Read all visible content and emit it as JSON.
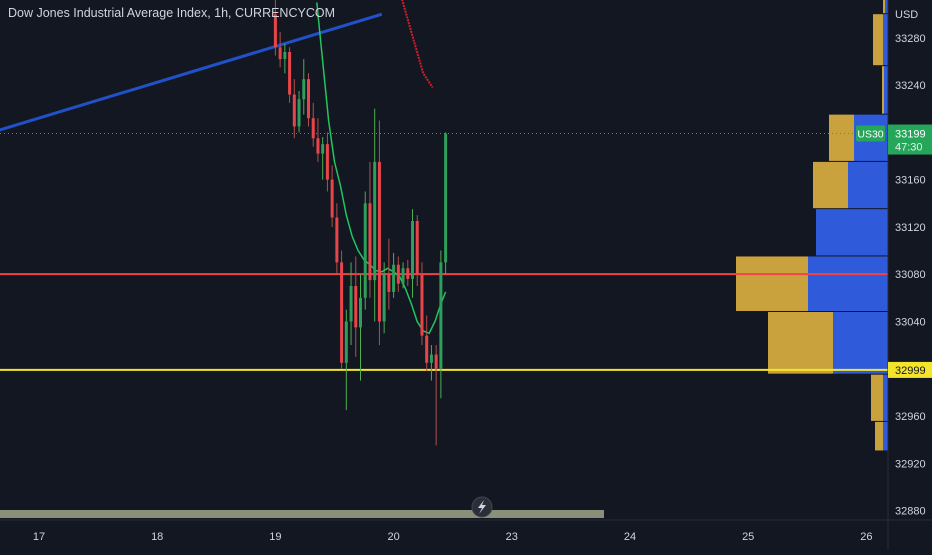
{
  "header": {
    "title": "Dow Jones Industrial Average Index, 1h, CURRENCYCOM"
  },
  "colors": {
    "background": "#131722",
    "axis_text": "#d1d4dc",
    "bull": "#2e9e5b",
    "bear": "#e8454a",
    "wick_bull": "#4caf50",
    "wick_bear": "#b0504f",
    "sma_line": "#22c55e",
    "trend_line": "#2151c8",
    "red_level": "#ef4444",
    "yellow_level": "#f5e52a",
    "vp_up": "#c9a23e",
    "vp_down": "#2f5bdb",
    "price_tag": "#26a65b"
  },
  "chart_data": {
    "type": "candlestick",
    "title": "Dow Jones Industrial Average Index, 1h, CURRENCYCOM",
    "y_axis": {
      "unit": "USD",
      "ticks": [
        33280,
        33240,
        33160,
        33120,
        33080,
        33040,
        32960,
        32920,
        32880
      ],
      "range": [
        32872,
        33312
      ]
    },
    "x_axis": {
      "ticks": [
        "17",
        "18",
        "19",
        "20",
        "23",
        "24",
        "25",
        "26"
      ],
      "tick_index": [
        0,
        1,
        2,
        3,
        4,
        5,
        6,
        7
      ]
    },
    "current_price": {
      "symbol": "US30",
      "value": "33199",
      "countdown": "47:30"
    },
    "levels": {
      "red": 33080,
      "yellow": {
        "value": 32999,
        "label": "32999"
      }
    },
    "candles": [
      {
        "x": 2.0,
        "o": 33300,
        "h": 33315,
        "l": 33265,
        "c": 33272
      },
      {
        "x": 2.04,
        "o": 33272,
        "h": 33285,
        "l": 33255,
        "c": 33262
      },
      {
        "x": 2.08,
        "o": 33262,
        "h": 33275,
        "l": 33250,
        "c": 33268
      },
      {
        "x": 2.12,
        "o": 33268,
        "h": 33272,
        "l": 33225,
        "c": 33232
      },
      {
        "x": 2.16,
        "o": 33232,
        "h": 33245,
        "l": 33195,
        "c": 33205
      },
      {
        "x": 2.2,
        "o": 33205,
        "h": 33235,
        "l": 33200,
        "c": 33228
      },
      {
        "x": 2.24,
        "o": 33228,
        "h": 33262,
        "l": 33215,
        "c": 33245
      },
      {
        "x": 2.28,
        "o": 33245,
        "h": 33250,
        "l": 33205,
        "c": 33212
      },
      {
        "x": 2.32,
        "o": 33212,
        "h": 33225,
        "l": 33188,
        "c": 33195
      },
      {
        "x": 2.36,
        "o": 33195,
        "h": 33212,
        "l": 33175,
        "c": 33182
      },
      {
        "x": 2.4,
        "o": 33182,
        "h": 33196,
        "l": 33160,
        "c": 33190
      },
      {
        "x": 2.44,
        "o": 33190,
        "h": 33200,
        "l": 33150,
        "c": 33160
      },
      {
        "x": 2.48,
        "o": 33160,
        "h": 33172,
        "l": 33120,
        "c": 33128
      },
      {
        "x": 2.52,
        "o": 33128,
        "h": 33140,
        "l": 33080,
        "c": 33090
      },
      {
        "x": 2.56,
        "o": 33090,
        "h": 33100,
        "l": 33000,
        "c": 33005
      },
      {
        "x": 2.6,
        "o": 33005,
        "h": 33050,
        "l": 32965,
        "c": 33040
      },
      {
        "x": 2.64,
        "o": 33040,
        "h": 33090,
        "l": 33020,
        "c": 33070
      },
      {
        "x": 2.68,
        "o": 33070,
        "h": 33095,
        "l": 33010,
        "c": 33035
      },
      {
        "x": 2.72,
        "o": 33035,
        "h": 33080,
        "l": 32990,
        "c": 33060
      },
      {
        "x": 2.76,
        "o": 33060,
        "h": 33150,
        "l": 33050,
        "c": 33140
      },
      {
        "x": 2.8,
        "o": 33140,
        "h": 33175,
        "l": 33060,
        "c": 33075
      },
      {
        "x": 2.84,
        "o": 33075,
        "h": 33220,
        "l": 33040,
        "c": 33175
      },
      {
        "x": 2.88,
        "o": 33175,
        "h": 33210,
        "l": 33020,
        "c": 33040
      },
      {
        "x": 2.92,
        "o": 33040,
        "h": 33090,
        "l": 33030,
        "c": 33080
      },
      {
        "x": 2.96,
        "o": 33080,
        "h": 33110,
        "l": 33050,
        "c": 33065
      },
      {
        "x": 3.0,
        "o": 33065,
        "h": 33098,
        "l": 33060,
        "c": 33088
      },
      {
        "x": 3.04,
        "o": 33088,
        "h": 33095,
        "l": 33065,
        "c": 33072
      },
      {
        "x": 3.08,
        "o": 33072,
        "h": 33090,
        "l": 33068,
        "c": 33085
      },
      {
        "x": 3.12,
        "o": 33085,
        "h": 33092,
        "l": 33070,
        "c": 33076
      },
      {
        "x": 3.16,
        "o": 33076,
        "h": 33135,
        "l": 33060,
        "c": 33125
      },
      {
        "x": 3.2,
        "o": 33125,
        "h": 33130,
        "l": 33070,
        "c": 33080
      },
      {
        "x": 3.24,
        "o": 33080,
        "h": 33090,
        "l": 33020,
        "c": 33028
      },
      {
        "x": 3.28,
        "o": 33028,
        "h": 33045,
        "l": 32998,
        "c": 33005
      },
      {
        "x": 3.32,
        "o": 33005,
        "h": 33020,
        "l": 32990,
        "c": 33012
      },
      {
        "x": 3.36,
        "o": 33012,
        "h": 33020,
        "l": 32935,
        "c": 33000
      },
      {
        "x": 3.4,
        "o": 33000,
        "h": 33100,
        "l": 32975,
        "c": 33090
      },
      {
        "x": 3.44,
        "o": 33090,
        "h": 33200,
        "l": 33080,
        "c": 33199
      }
    ],
    "sma": [
      [
        2.35,
        33310
      ],
      [
        2.4,
        33260
      ],
      [
        2.45,
        33210
      ],
      [
        2.5,
        33175
      ],
      [
        2.55,
        33155
      ],
      [
        2.6,
        33130
      ],
      [
        2.65,
        33112
      ],
      [
        2.7,
        33100
      ],
      [
        2.75,
        33092
      ],
      [
        2.8,
        33088
      ],
      [
        2.85,
        33083
      ],
      [
        2.9,
        33082
      ],
      [
        2.95,
        33085
      ],
      [
        3.0,
        33082
      ],
      [
        3.05,
        33078
      ],
      [
        3.1,
        33068
      ],
      [
        3.15,
        33055
      ],
      [
        3.2,
        33040
      ],
      [
        3.25,
        33032
      ],
      [
        3.3,
        33030
      ],
      [
        3.35,
        33040
      ],
      [
        3.4,
        33055
      ],
      [
        3.44,
        33065
      ]
    ],
    "red_ma": [
      [
        3.05,
        33320
      ],
      [
        3.15,
        33285
      ],
      [
        3.25,
        33250
      ],
      [
        3.33,
        33238
      ]
    ],
    "trend_line": [
      [
        -0.4,
        33200
      ],
      [
        2.9,
        33300
      ]
    ],
    "volume_profile": [
      {
        "from": 33300,
        "to": 33312,
        "up": 2,
        "down": 3
      },
      {
        "from": 33256,
        "to": 33300,
        "up": 10,
        "down": 5
      },
      {
        "from": 33215,
        "to": 33256,
        "up": 2,
        "down": 4
      },
      {
        "from": 33175,
        "to": 33215,
        "up": 25,
        "down": 34
      },
      {
        "from": 33135,
        "to": 33175,
        "up": 35,
        "down": 40
      },
      {
        "from": 33095,
        "to": 33135,
        "up": 0,
        "down": 72
      },
      {
        "from": 33048,
        "to": 33095,
        "up": 72,
        "down": 80
      },
      {
        "from": 32995,
        "to": 33048,
        "up": 65,
        "down": 55
      },
      {
        "from": 32955,
        "to": 32995,
        "up": 12,
        "down": 5
      },
      {
        "from": 32930,
        "to": 32955,
        "up": 8,
        "down": 5
      }
    ]
  }
}
